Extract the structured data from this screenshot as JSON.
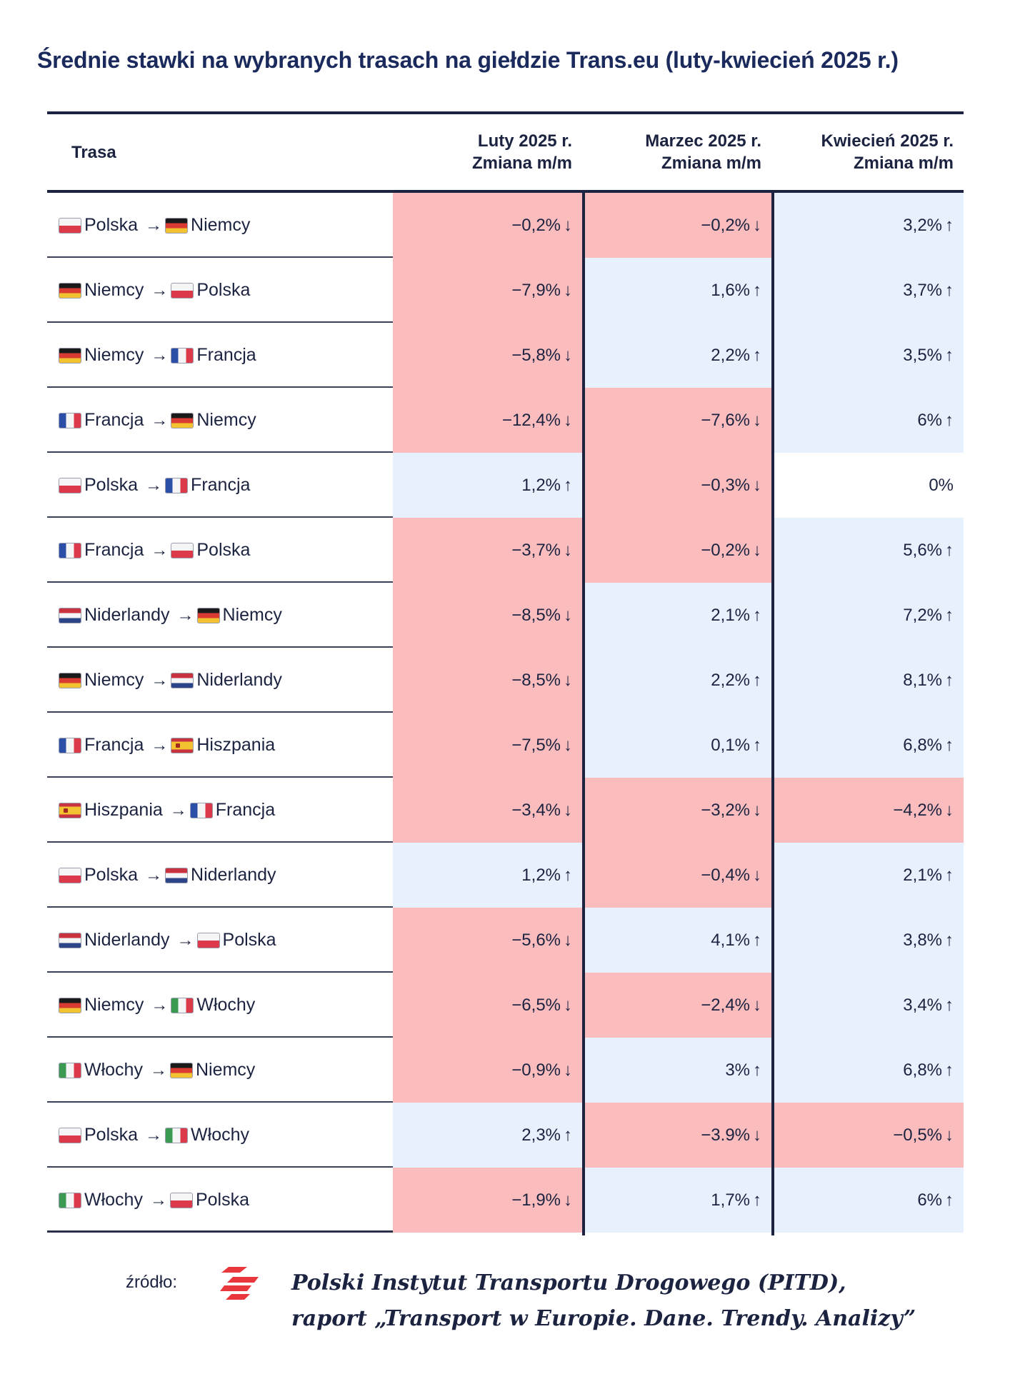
{
  "title": "Średnie stawki na wybranych trasach na giełdzie Trans.eu (luty-kwiecień 2025 r.)",
  "chart_data": {
    "type": "table",
    "headers": {
      "route": "Trasa",
      "feb_line1": "Luty 2025 r.",
      "feb_line2": "Zmiana m/m",
      "mar_line1": "Marzec 2025 r.",
      "mar_line2": "Zmiana m/m",
      "apr_line1": "Kwiecień 2025 r.",
      "apr_line2": "Zmiana m/m"
    },
    "rows": [
      {
        "from": "Polska",
        "to": "Niemcy",
        "from_flag": "pl",
        "to_flag": "de",
        "feb": "−0,2%",
        "mar": "−0,2%",
        "apr": "3,2%"
      },
      {
        "from": "Niemcy",
        "to": "Polska",
        "from_flag": "de",
        "to_flag": "pl",
        "feb": "−7,9%",
        "mar": "1,6%",
        "apr": "3,7%"
      },
      {
        "from": "Niemcy",
        "to": "Francja",
        "from_flag": "de",
        "to_flag": "fr",
        "feb": "−5,8%",
        "mar": "2,2%",
        "apr": "3,5%"
      },
      {
        "from": "Francja",
        "to": "Niemcy",
        "from_flag": "fr",
        "to_flag": "de",
        "feb": "−12,4%",
        "mar": "−7,6%",
        "apr": "6%"
      },
      {
        "from": "Polska",
        "to": "Francja",
        "from_flag": "pl",
        "to_flag": "fr",
        "feb": "1,2%",
        "mar": "−0,3%",
        "apr": "0%"
      },
      {
        "from": "Francja",
        "to": "Polska",
        "from_flag": "fr",
        "to_flag": "pl",
        "feb": "−3,7%",
        "mar": "−0,2%",
        "apr": "5,6%"
      },
      {
        "from": "Niderlandy",
        "to": "Niemcy",
        "from_flag": "nl",
        "to_flag": "de",
        "feb": "−8,5%",
        "mar": "2,1%",
        "apr": "7,2%"
      },
      {
        "from": "Niemcy",
        "to": "Niderlandy",
        "from_flag": "de",
        "to_flag": "nl",
        "feb": "−8,5%",
        "mar": "2,2%",
        "apr": "8,1%"
      },
      {
        "from": "Francja",
        "to": "Hiszpania",
        "from_flag": "fr",
        "to_flag": "es",
        "feb": "−7,5%",
        "mar": "0,1%",
        "apr": "6,8%"
      },
      {
        "from": "Hiszpania",
        "to": "Francja",
        "from_flag": "es",
        "to_flag": "fr",
        "feb": "−3,4%",
        "mar": "−3,2%",
        "apr": "−4,2%"
      },
      {
        "from": "Polska",
        "to": "Niderlandy",
        "from_flag": "pl",
        "to_flag": "nl",
        "feb": "1,2%",
        "mar": "−0,4%",
        "apr": "2,1%"
      },
      {
        "from": "Niderlandy",
        "to": "Polska",
        "from_flag": "nl",
        "to_flag": "pl",
        "feb": "−5,6%",
        "mar": "4,1%",
        "apr": "3,8%"
      },
      {
        "from": "Niemcy",
        "to": "Włochy",
        "from_flag": "de",
        "to_flag": "it",
        "feb": "−6,5%",
        "mar": "−2,4%",
        "apr": "3,4%"
      },
      {
        "from": "Włochy",
        "to": "Niemcy",
        "from_flag": "it",
        "to_flag": "de",
        "feb": "−0,9%",
        "mar": "3%",
        "apr": "6,8%"
      },
      {
        "from": "Polska",
        "to": "Włochy",
        "from_flag": "pl",
        "to_flag": "it",
        "feb": "2,3%",
        "mar": "−3.9%",
        "apr": "−0,5%"
      },
      {
        "from": "Włochy",
        "to": "Polska",
        "from_flag": "it",
        "to_flag": "pl",
        "feb": "−1,9%",
        "mar": "1,7%",
        "apr": "6%"
      }
    ]
  },
  "colors": {
    "negative_cell": "#fbbcbd",
    "positive_cell": "#e7f1fd",
    "neutral_cell": "#ffffff",
    "text": "#1b2340",
    "title": "#1b2a5c",
    "logo": "#e8383d"
  },
  "arrow_symbol": "→",
  "up_symbol": "↑",
  "down_symbol": "↓",
  "source": {
    "label": "źródło:",
    "line1": "Polski Instytut Transportu Drogowego (PITD),",
    "line2": "raport „Transport w Europie. Dane. Trendy. Analizy”"
  }
}
